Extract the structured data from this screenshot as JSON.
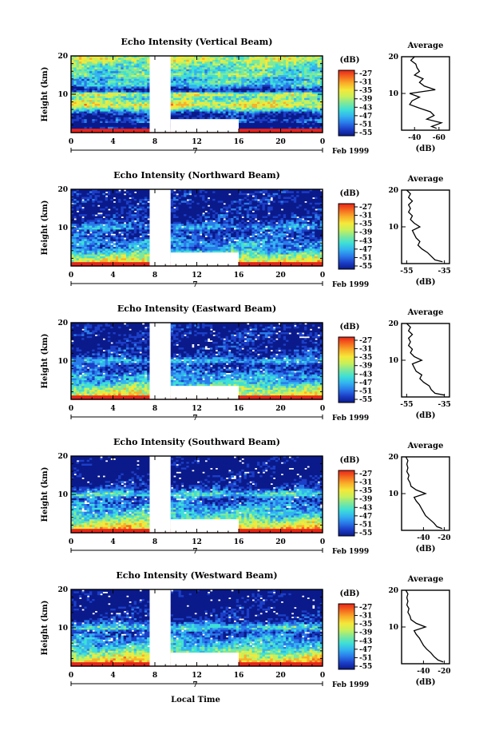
{
  "colors": {
    "colormap": [
      "#0b1a8a",
      "#1c3fc8",
      "#2a7bea",
      "#33b4f0",
      "#3ee0d6",
      "#7fe89a",
      "#c8f05a",
      "#f5e83a",
      "#f9b02a",
      "#f56a1e",
      "#e8241a"
    ],
    "missing": "#ffffff"
  },
  "shared": {
    "colorbar_unit": "(dB)",
    "colorbar_ticks": [
      "-27",
      "-31",
      "-35",
      "-39",
      "-43",
      "-47",
      "-51",
      "-55"
    ],
    "month_label": "Feb 1999",
    "date_label": "7",
    "xlabel": "Local Time",
    "ylabel": "Height (km)",
    "average_title": "Average",
    "average_unit": "(dB)"
  },
  "chart_data": [
    {
      "type": "heatmap",
      "title": "Echo Intensity (Vertical Beam)",
      "x_ticks": [
        "0",
        "4",
        "8",
        "12",
        "16",
        "20",
        "0"
      ],
      "y_ticks": [
        "20",
        "10"
      ],
      "xlim": [
        0,
        24
      ],
      "ylim": [
        0,
        20
      ],
      "missing_data_hours": [
        [
          7.5,
          9.5
        ],
        [
          9.5,
          16
        ]
      ],
      "profile": {
        "x_ticks": [
          "-40",
          "-60"
        ],
        "xlim": [
          -32,
          -66
        ],
        "height": [
          0.5,
          1,
          2,
          3,
          4,
          5,
          6,
          7,
          8,
          9,
          10,
          11,
          12,
          13,
          14,
          15,
          16,
          17,
          18,
          19,
          20
        ],
        "db": [
          -58,
          -54,
          -62,
          -50,
          -56,
          -53,
          -44,
          -36,
          -38,
          -44,
          -36,
          -57,
          -48,
          -44,
          -47,
          -40,
          -44,
          -42,
          -41,
          -37,
          -40
        ]
      }
    },
    {
      "type": "heatmap",
      "title": "Echo Intensity (Northward Beam)",
      "x_ticks": [
        "0",
        "4",
        "8",
        "12",
        "16",
        "20",
        "0"
      ],
      "y_ticks": [
        "20",
        "10"
      ],
      "xlim": [
        0,
        24
      ],
      "ylim": [
        0,
        20
      ],
      "missing_data_hours": [
        [
          7.5,
          9.5
        ],
        [
          9.5,
          16
        ]
      ],
      "profile": {
        "x_ticks": [
          "-55",
          "-35"
        ],
        "xlim": [
          -56,
          -34
        ],
        "height": [
          0.5,
          1,
          2,
          3,
          4,
          5,
          6,
          7,
          8,
          9,
          10,
          11,
          12,
          13,
          14,
          15,
          16,
          17,
          18,
          19,
          20
        ],
        "db": [
          -36,
          -40,
          -42,
          -44,
          -47,
          -49,
          -48,
          -50,
          -51,
          -52,
          -48,
          -51,
          -53,
          -52,
          -54,
          -53,
          -54,
          -52,
          -54,
          -53,
          -55
        ]
      }
    },
    {
      "type": "heatmap",
      "title": "Echo Intensity (Eastward Beam)",
      "x_ticks": [
        "0",
        "4",
        "8",
        "12",
        "16",
        "20",
        "0"
      ],
      "y_ticks": [
        "20",
        "10"
      ],
      "xlim": [
        0,
        24
      ],
      "ylim": [
        0,
        20
      ],
      "missing_data_hours": [
        [
          7.5,
          9.5
        ],
        [
          9.5,
          16
        ]
      ],
      "profile": {
        "x_ticks": [
          "-55",
          "-35"
        ],
        "xlim": [
          -56,
          -34
        ],
        "height": [
          0.5,
          1,
          2,
          3,
          4,
          5,
          6,
          7,
          8,
          9,
          10,
          11,
          12,
          13,
          14,
          15,
          16,
          17,
          18,
          19,
          20
        ],
        "db": [
          -35,
          -40,
          -42,
          -43,
          -46,
          -48,
          -47,
          -50,
          -51,
          -52,
          -47,
          -51,
          -53,
          -52,
          -54,
          -53,
          -54,
          -52,
          -54,
          -53,
          -55
        ]
      }
    },
    {
      "type": "heatmap",
      "title": "Echo Intensity (Southward Beam)",
      "x_ticks": [
        "0",
        "4",
        "8",
        "12",
        "16",
        "20",
        "0"
      ],
      "y_ticks": [
        "20",
        "10"
      ],
      "xlim": [
        0,
        24
      ],
      "ylim": [
        0,
        20
      ],
      "missing_data_hours": [
        [
          7.5,
          9.5
        ],
        [
          9.5,
          16
        ]
      ],
      "profile": {
        "x_ticks": [
          "-40",
          "-20"
        ],
        "xlim": [
          -58,
          -18
        ],
        "height": [
          0.5,
          1,
          2,
          3,
          4,
          5,
          6,
          7,
          8,
          9,
          10,
          11,
          12,
          13,
          14,
          15,
          16,
          17,
          18,
          19,
          20
        ],
        "db": [
          -22,
          -27,
          -30,
          -34,
          -38,
          -40,
          -42,
          -44,
          -47,
          -49,
          -38,
          -47,
          -52,
          -53,
          -55,
          -54,
          -56,
          -55,
          -56,
          -55,
          -57
        ]
      }
    },
    {
      "type": "heatmap",
      "title": "Echo Intensity (Westward Beam)",
      "x_ticks": [
        "0",
        "4",
        "8",
        "12",
        "16",
        "20",
        "0"
      ],
      "y_ticks": [
        "20",
        "10"
      ],
      "xlim": [
        0,
        24
      ],
      "ylim": [
        0,
        20
      ],
      "missing_data_hours": [
        [
          7.5,
          9.5
        ],
        [
          9.5,
          16
        ]
      ],
      "profile": {
        "x_ticks": [
          "-40",
          "-20"
        ],
        "xlim": [
          -58,
          -18
        ],
        "height": [
          0.5,
          1,
          2,
          3,
          4,
          5,
          6,
          7,
          8,
          9,
          10,
          11,
          12,
          13,
          14,
          15,
          16,
          17,
          18,
          19,
          20
        ],
        "db": [
          -21,
          -26,
          -30,
          -33,
          -37,
          -40,
          -42,
          -44,
          -47,
          -49,
          -38,
          -47,
          -52,
          -53,
          -55,
          -54,
          -56,
          -55,
          -56,
          -55,
          -57
        ]
      }
    }
  ]
}
